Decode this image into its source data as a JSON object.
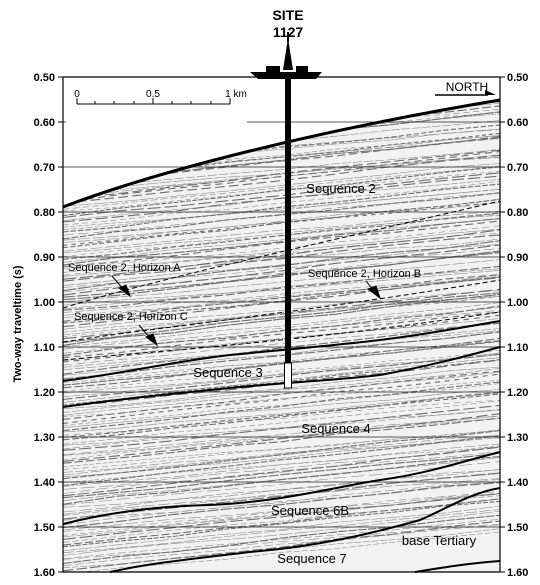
{
  "site": {
    "line1": "SITE",
    "line2": "1127"
  },
  "north_label": "NORTH",
  "scale_bar": {
    "ticks": [
      "0",
      "0.5",
      "1 km"
    ]
  },
  "axis": {
    "title": "Two-way traveltime (s)",
    "min": 0.5,
    "max": 1.6,
    "ticks": [
      "0.50",
      "0.60",
      "0.70",
      "0.80",
      "0.90",
      "1.00",
      "1.10",
      "1.20",
      "1.30",
      "1.40",
      "1.50",
      "1.60"
    ]
  },
  "sequences": [
    {
      "id": "seq2",
      "label": "Sequence 2"
    },
    {
      "id": "seq3",
      "label": "Sequence 3"
    },
    {
      "id": "seq4",
      "label": "Sequence 4"
    },
    {
      "id": "seq6b",
      "label": "Sequence 6B"
    },
    {
      "id": "seq7",
      "label": "Sequence 7"
    },
    {
      "id": "base",
      "label": "base Tertiary"
    }
  ],
  "horizons": [
    {
      "id": "horizonA",
      "label": "Sequence 2, Horizon A"
    },
    {
      "id": "horizonB",
      "label": "Sequence 2, Horizon B"
    },
    {
      "id": "horizonC",
      "label": "Sequence 2, Horizon C"
    }
  ],
  "colors": {
    "ink": "#000000",
    "background": "#ffffff",
    "seismic_gray": "#8c8c8c",
    "grid": "#222222"
  }
}
